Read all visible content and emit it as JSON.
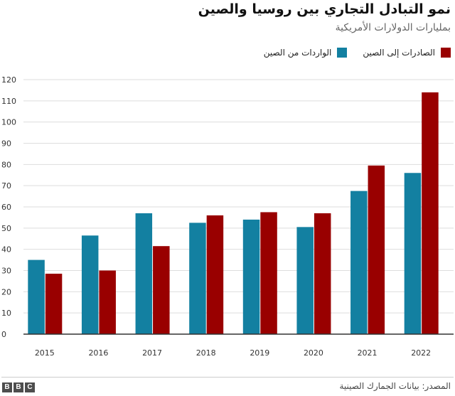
{
  "header": {
    "title": "نمو التبادل التجاري بين روسيا والصين",
    "subtitle": "بمليارات الدولارات الأمريكية"
  },
  "legend": {
    "exports_label": "الصادرات إلى الصين",
    "imports_label": "الواردات من الصين"
  },
  "footer": {
    "source": "المصدر: بيانات الجمارك الصينية",
    "logo_letters": [
      "B",
      "B",
      "C"
    ]
  },
  "colors": {
    "imports": "#1380A1",
    "exports": "#990000",
    "grid": "#dddddd",
    "axis": "#333333"
  },
  "chart_data": {
    "type": "bar",
    "title": "نمو التبادل التجاري بين روسيا والصين",
    "subtitle": "بمليارات الدولارات الأمريكية",
    "categories": [
      "2015",
      "2016",
      "2017",
      "2018",
      "2019",
      "2020",
      "2021",
      "2022"
    ],
    "series": [
      {
        "name": "الواردات من الصين",
        "key": "imports",
        "values": [
          35,
          46.5,
          57,
          52.5,
          54,
          50.5,
          67.5,
          76
        ]
      },
      {
        "name": "الصادرات إلى الصين",
        "key": "exports",
        "values": [
          28.5,
          30,
          41.5,
          56,
          57.5,
          57,
          79.5,
          114
        ]
      }
    ],
    "ylim": [
      0,
      120
    ],
    "yticks": [
      0,
      10,
      20,
      30,
      40,
      50,
      60,
      70,
      80,
      90,
      100,
      110,
      120
    ],
    "xlabel": "",
    "ylabel": "",
    "grid": true,
    "legend_position": "top-right"
  }
}
